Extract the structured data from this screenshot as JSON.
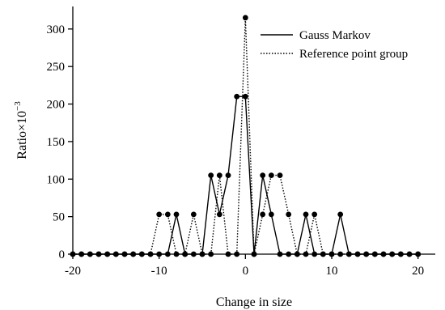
{
  "chart_data": {
    "type": "line",
    "xlabel": "Change in size",
    "ylabel_main": "Ratio×10",
    "ylabel_exp": "−3",
    "xlim": [
      -20,
      22
    ],
    "ylim": [
      0,
      330
    ],
    "x_ticks": [
      -20,
      -10,
      0,
      10,
      20
    ],
    "x_tick_labels": [
      "-20",
      "-10",
      "0",
      "10",
      "20"
    ],
    "y_ticks": [
      0,
      50,
      100,
      150,
      200,
      250,
      300
    ],
    "y_tick_labels": [
      "0",
      "50",
      "100",
      "150",
      "200",
      "250",
      "300"
    ],
    "legend_position": "top-right",
    "series": [
      {
        "name": "Gauss Markov",
        "style": "solid",
        "x": [
          -20,
          -19,
          -18,
          -17,
          -16,
          -15,
          -14,
          -13,
          -12,
          -11,
          -10,
          -9,
          -8,
          -7,
          -6,
          -5,
          -4,
          -3,
          -2,
          -1,
          0,
          1,
          2,
          3,
          4,
          5,
          6,
          7,
          8,
          9,
          10,
          11,
          12,
          13,
          14,
          15,
          16,
          17,
          18,
          19,
          20
        ],
        "y": [
          0,
          0,
          0,
          0,
          0,
          0,
          0,
          0,
          0,
          0,
          0,
          0,
          53,
          0,
          0,
          0,
          105,
          53,
          105,
          210,
          210,
          0,
          105,
          53,
          0,
          0,
          0,
          53,
          0,
          0,
          0,
          53,
          0,
          0,
          0,
          0,
          0,
          0,
          0,
          0,
          0
        ]
      },
      {
        "name": "Reference point group",
        "style": "dotted",
        "x": [
          -20,
          -19,
          -18,
          -17,
          -16,
          -15,
          -14,
          -13,
          -12,
          -11,
          -10,
          -9,
          -8,
          -7,
          -6,
          -5,
          -4,
          -3,
          -2,
          -1,
          0,
          1,
          2,
          3,
          4,
          5,
          6,
          7,
          8,
          9,
          10,
          11,
          12,
          13,
          14,
          15,
          16,
          17,
          18,
          19,
          20
        ],
        "y": [
          0,
          0,
          0,
          0,
          0,
          0,
          0,
          0,
          0,
          0,
          53,
          53,
          0,
          0,
          53,
          0,
          0,
          105,
          0,
          0,
          315,
          0,
          53,
          105,
          105,
          53,
          0,
          0,
          53,
          0,
          0,
          0,
          0,
          0,
          0,
          0,
          0,
          0,
          0,
          0,
          0
        ]
      }
    ]
  }
}
